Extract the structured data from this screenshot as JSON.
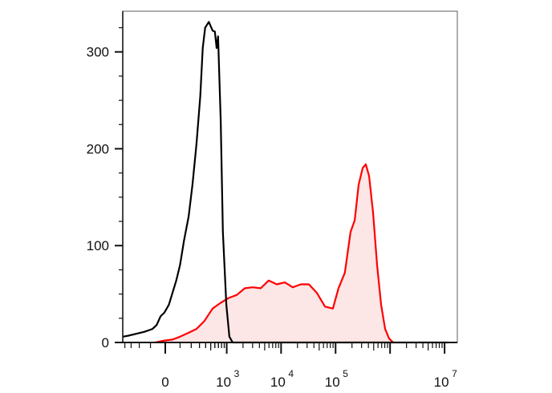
{
  "chart_data": {
    "type": "area",
    "title": "",
    "xlabel": "",
    "ylabel": "",
    "x_scale": "biexponential",
    "ylim": [
      0,
      342
    ],
    "xlim": [
      -440,
      12000000
    ],
    "grid": false,
    "y_ticks": [
      {
        "value": 0,
        "label": "0"
      },
      {
        "value": 100,
        "label": "100"
      },
      {
        "value": 200,
        "label": "200"
      },
      {
        "value": 300,
        "label": "300"
      }
    ],
    "x_ticks": [
      {
        "value": 0,
        "base": "0",
        "exp": ""
      },
      {
        "value": 1000,
        "base": "10",
        "exp": "3"
      },
      {
        "value": 10000,
        "base": "10",
        "exp": "4"
      },
      {
        "value": 100000,
        "base": "10",
        "exp": "5"
      },
      {
        "value": 10000000,
        "base": "10",
        "exp": "7"
      }
    ],
    "series": [
      {
        "color": "#000000",
        "fill": "none",
        "points": [
          [
            -440,
            6
          ],
          [
            -340,
            7
          ],
          [
            -230,
            9
          ],
          [
            -150,
            11
          ],
          [
            -85,
            14
          ],
          [
            -56,
            18
          ],
          [
            -30,
            27
          ],
          [
            -5,
            31
          ],
          [
            23,
            39
          ],
          [
            46,
            51
          ],
          [
            72,
            64
          ],
          [
            100,
            80
          ],
          [
            131,
            105
          ],
          [
            173,
            130
          ],
          [
            213,
            163
          ],
          [
            260,
            205
          ],
          [
            312,
            254
          ],
          [
            350,
            304
          ],
          [
            390,
            325
          ],
          [
            460,
            331
          ],
          [
            544,
            322
          ],
          [
            600,
            321
          ],
          [
            648,
            304
          ],
          [
            690,
            316
          ],
          [
            772,
            229
          ],
          [
            850,
            114
          ],
          [
            985,
            39
          ],
          [
            1120,
            6
          ],
          [
            1290,
            0
          ],
          [
            1530,
            0
          ],
          [
            12000000,
            0
          ]
        ]
      },
      {
        "color": "#ff0000",
        "fill": "#fde6e6",
        "points": [
          [
            -66,
            0
          ],
          [
            -5,
            2
          ],
          [
            46,
            3
          ],
          [
            100,
            6
          ],
          [
            173,
            10
          ],
          [
            260,
            14
          ],
          [
            375,
            22
          ],
          [
            544,
            35
          ],
          [
            772,
            41
          ],
          [
            1090,
            46
          ],
          [
            1530,
            49
          ],
          [
            2160,
            56
          ],
          [
            3010,
            57
          ],
          [
            4230,
            56
          ],
          [
            5930,
            64
          ],
          [
            8330,
            60
          ],
          [
            11700,
            62
          ],
          [
            16400,
            57
          ],
          [
            23100,
            60
          ],
          [
            32400,
            60
          ],
          [
            45600,
            51
          ],
          [
            64000,
            37
          ],
          [
            89100,
            35
          ],
          [
            113000,
            56
          ],
          [
            148000,
            72
          ],
          [
            188000,
            114
          ],
          [
            224000,
            126
          ],
          [
            265000,
            163
          ],
          [
            314000,
            180
          ],
          [
            358000,
            184
          ],
          [
            411000,
            172
          ],
          [
            487000,
            134
          ],
          [
            577000,
            80
          ],
          [
            684000,
            39
          ],
          [
            811000,
            14
          ],
          [
            962000,
            4
          ],
          [
            1140000,
            0
          ]
        ]
      }
    ]
  }
}
